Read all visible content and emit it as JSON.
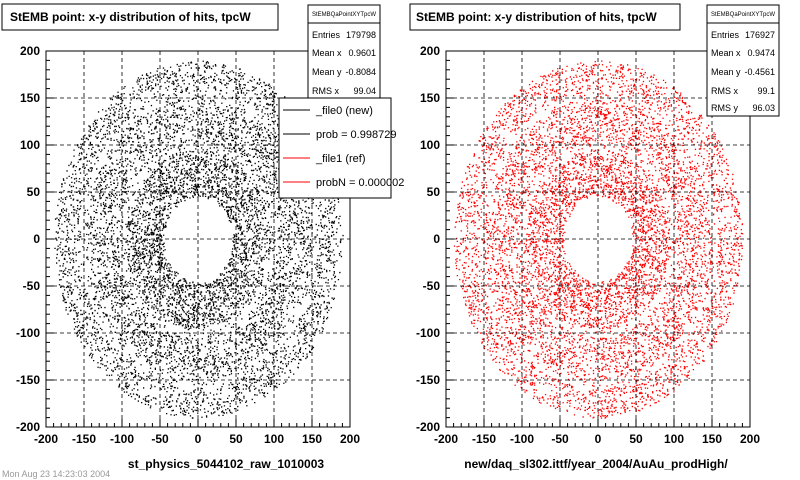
{
  "chart_data": [
    {
      "type": "scatter",
      "title": "StEMB point: x-y distribution of hits, tpcW",
      "xlabel": "st_physics_5044102_raw_1010003",
      "ylabel": "",
      "xlim": [
        -200,
        200
      ],
      "ylim": [
        -200,
        200
      ],
      "xticks": [
        "-200",
        "-150",
        "-100",
        "-50",
        "0",
        "50",
        "100",
        "150",
        "200"
      ],
      "yticks": [
        "200",
        "150",
        "100",
        "50",
        "0",
        "-50",
        "-100",
        "-150",
        "-200"
      ],
      "grid": true,
      "color": "#000000",
      "distribution": {
        "inner_hole_radius": 45,
        "outer_radius": 190,
        "low_density_rings": [
          [
            95,
            105
          ],
          [
            150,
            158
          ]
        ]
      },
      "stats": {
        "name": "StEMBQaPointXYTpcW",
        "rows": [
          [
            "Entries",
            "179798"
          ],
          [
            "Mean x",
            "0.9601"
          ],
          [
            "Mean y",
            "-0.8084"
          ],
          [
            "RMS x",
            "99.04"
          ]
        ]
      },
      "legend": {
        "placement": "top-right",
        "entries": [
          {
            "label": "_file0 (new)",
            "color": "#000000"
          },
          {
            "label": "prob = 0.998729",
            "color": "#000000"
          },
          {
            "label": "_file1 (ref)",
            "color": "#ff0000"
          },
          {
            "label": "probN = 0.000002",
            "color": "#ff0000"
          }
        ]
      }
    },
    {
      "type": "scatter",
      "title": "StEMB point: x-y distribution of hits, tpcW",
      "xlabel": "new/daq_sl302.ittf/year_2004/AuAu_prodHigh/",
      "ylabel": "",
      "xlim": [
        -200,
        200
      ],
      "ylim": [
        -200,
        200
      ],
      "xticks": [
        "-200",
        "-150",
        "-100",
        "-50",
        "0",
        "50",
        "100",
        "150",
        "200"
      ],
      "yticks": [
        "200",
        "150",
        "100",
        "50",
        "0",
        "-50",
        "-100",
        "-150",
        "-200"
      ],
      "grid": true,
      "color": "#ff0000",
      "distribution": {
        "inner_hole_radius": 45,
        "outer_radius": 190,
        "low_density_rings": [
          [
            95,
            105
          ],
          [
            150,
            158
          ]
        ]
      },
      "stats": {
        "name": "StEMBQaPointXYTpcW",
        "rows": [
          [
            "Entries",
            "176927"
          ],
          [
            "Mean x",
            "0.9474"
          ],
          [
            "Mean y",
            "-0.4561"
          ],
          [
            "RMS x",
            "99.1"
          ],
          [
            "RMS y",
            "96.03"
          ]
        ]
      }
    }
  ],
  "footer_text": "Mon Aug 23 14:23:03 2004"
}
